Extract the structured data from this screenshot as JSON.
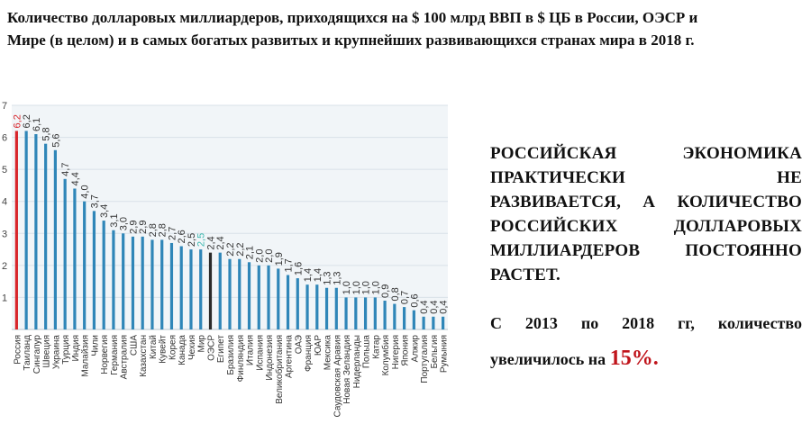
{
  "title": {
    "line1": "Количество долларовых миллиардеров, приходящихся на $ 100 млрд ВВП в $ ЦБ в России, ОЭСР и",
    "line2": "Мире (в целом) и в самых богатых развитых и крупнейших развивающихся странах мира в 2018 г."
  },
  "chart_data": {
    "type": "bar",
    "ylim": [
      0,
      7
    ],
    "grid": true,
    "ytick_labels": [
      "7",
      "6",
      "5",
      "4",
      "3",
      "2",
      "1"
    ],
    "categories": [
      "Россия",
      "Таиланд",
      "Сингапур",
      "Швеция",
      "Украина",
      "Турция",
      "Индия",
      "Малайзия",
      "Чили",
      "Норвегия",
      "Германия",
      "Австралия",
      "США",
      "Казахстан",
      "Китай",
      "Кувейт",
      "Корея",
      "Канада",
      "Чехия",
      "Мир",
      "ОЭСР",
      "Египет",
      "Бразилия",
      "Финляндия",
      "Италия",
      "Испания",
      "Индонезия",
      "Великобритания",
      "Аргентина",
      "ОАЭ",
      "Франция",
      "ЮАР",
      "Мексика",
      "Саудовская Аравия",
      "Новая Зеландия",
      "Нидерланды",
      "Польша",
      "Катар",
      "Колумбия",
      "Нигерия",
      "Япония",
      "Алжир",
      "Португалия",
      "Бельгия",
      "Румыния"
    ],
    "values": [
      6.2,
      6.2,
      6.1,
      5.8,
      5.6,
      4.7,
      4.4,
      4.0,
      3.7,
      3.4,
      3.1,
      3.0,
      2.9,
      2.9,
      2.8,
      2.8,
      2.7,
      2.6,
      2.5,
      2.5,
      2.4,
      2.4,
      2.2,
      2.2,
      2.1,
      2.0,
      2.0,
      1.9,
      1.7,
      1.6,
      1.4,
      1.4,
      1.3,
      1.3,
      1.0,
      1.0,
      1.0,
      1.0,
      0.9,
      0.8,
      0.7,
      0.6,
      0.4,
      0.4,
      0.4
    ],
    "value_labels": [
      "6,2",
      "6,2",
      "6,1",
      "5,8",
      "5,6",
      "4,7",
      "4,4",
      "4,0",
      "3,7",
      "3,4",
      "3,1",
      "3,0",
      "2,9",
      "2,9",
      "2,8",
      "2,8",
      "2,7",
      "2,6",
      "2,5",
      "2,5",
      "2,4",
      "2,4",
      "2,2",
      "2,2",
      "2,1",
      "2,0",
      "2,0",
      "1,9",
      "1,7",
      "1,6",
      "1,4",
      "1,4",
      "1,3",
      "1,3",
      "1,0",
      "1,0",
      "1,0",
      "1,0",
      "0,9",
      "0,8",
      "0,7",
      "0,6",
      "0,4",
      "0,4",
      "0,4"
    ],
    "colors": {
      "default": "#2f86b8",
      "Россия": "#d8262c",
      "ОЭСР": "#2a2a2a",
      "Мир": "#2f86b8",
      "world_label": "#3fb8b0",
      "russia_label": "#d8262c"
    }
  },
  "panel": {
    "heading_lines": [
      "РОССИЙСКАЯ ЭКОНОМИКА",
      "ПРАКТИЧЕСКИ НЕ",
      "РАЗВИВАЕТСЯ, А КОЛИЧЕСТВО",
      "РОССИЙСКИХ ДОЛЛАРОВЫХ",
      "МИЛЛИАРДЕРОВ ПОСТОЯННО",
      "РАСТЕТ."
    ],
    "sub_line1": "С 2013 по 2018 гг, количество",
    "sub_line2": "увеличилось на",
    "sub_pct": "15%."
  }
}
